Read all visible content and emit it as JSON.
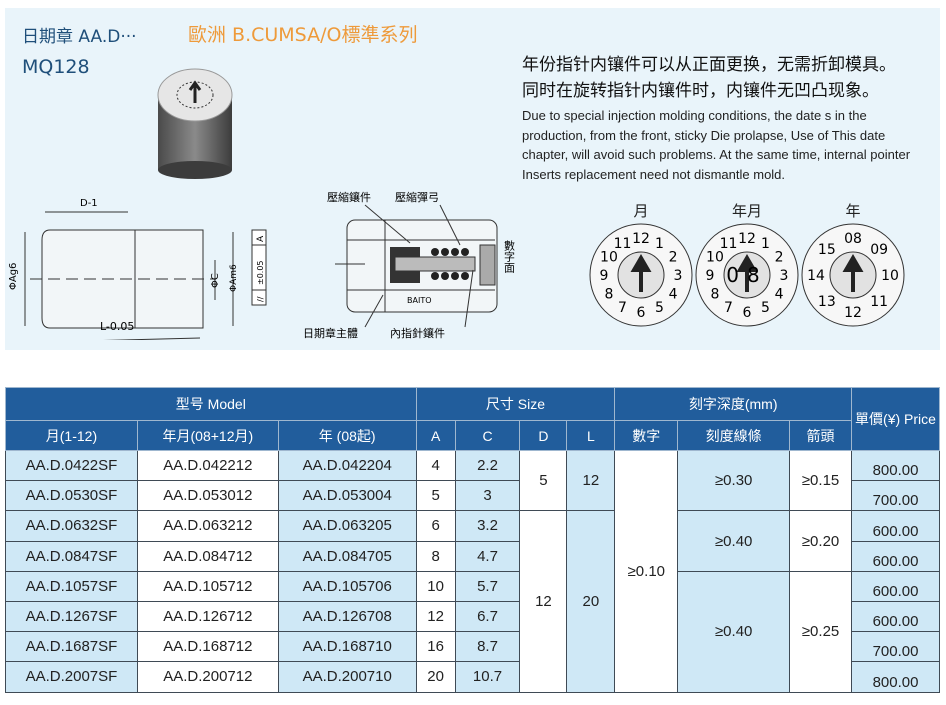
{
  "header": {
    "product": "日期章  AA.D···",
    "series": "歐洲 B.CUMSA/O標準系列",
    "code": "MQ128"
  },
  "description": {
    "cn": [
      "年份指针内镶件可以从正面更换，无需折卸模具。",
      "同时在旋转指针内镶件时，内镶件无凹凸现象。"
    ],
    "en": "Due to special injection molding conditions, the date s in the production, from the front, sticky Die prolapse, Use of This date chapter, will avoid such problems. At the same time, internal pointer Inserts replacement need not dismantle mold."
  },
  "drawing": {
    "d1": "D-1",
    "dg6": "ΦAg6",
    "l": "L-0.05",
    "c": "ΦC",
    "am6": "ΦAm6",
    "tol": "±0.05",
    "datum": "A",
    "par": "//"
  },
  "section": {
    "label1": "壓縮鑲件",
    "label2": "壓縮彈弓",
    "label3": "日期章主體",
    "label4": "內指針鑲件",
    "label5": "數字面",
    "brand": "BAITO"
  },
  "dials": [
    {
      "title": "月",
      "numbers": [
        "12",
        "1",
        "2",
        "3",
        "4",
        "5",
        "6",
        "7",
        "8",
        "9",
        "10",
        "11"
      ],
      "center": ""
    },
    {
      "title": "年月",
      "numbers": [
        "12",
        "1",
        "2",
        "3",
        "4",
        "5",
        "6",
        "7",
        "8",
        "9",
        "10",
        "11"
      ],
      "center": "08"
    },
    {
      "title": "年",
      "numbers": [
        "08",
        "09",
        "10",
        "11",
        "12",
        "13",
        "14",
        "15"
      ],
      "center": ""
    }
  ],
  "table": {
    "groups": {
      "model": "型号 Model",
      "size": "尺寸 Size",
      "depth": "刻字深度(mm)",
      "price": "單價(¥) Price"
    },
    "cols": [
      "月(1-12)",
      "年月(08+12月)",
      "年 (08起)",
      "A",
      "C",
      "D",
      "L",
      "數字",
      "刻度線條",
      "箭頭"
    ],
    "rows": [
      {
        "m": "AA.D.0422SF",
        "ym": "AA.D.042212",
        "y": "AA.D.042204",
        "a": "4",
        "c": "2.2",
        "price": "800.00"
      },
      {
        "m": "AA.D.0530SF",
        "ym": "AA.D.053012",
        "y": "AA.D.053004",
        "a": "5",
        "c": "3",
        "price": "700.00"
      },
      {
        "m": "AA.D.0632SF",
        "ym": "AA.D.063212",
        "y": "AA.D.063205",
        "a": "6",
        "c": "3.2",
        "price": "600.00"
      },
      {
        "m": "AA.D.0847SF",
        "ym": "AA.D.084712",
        "y": "AA.D.084705",
        "a": "8",
        "c": "4.7",
        "price": "600.00"
      },
      {
        "m": "AA.D.1057SF",
        "ym": "AA.D.105712",
        "y": "AA.D.105706",
        "a": "10",
        "c": "5.7",
        "price": "600.00"
      },
      {
        "m": "AA.D.1267SF",
        "ym": "AA.D.126712",
        "y": "AA.D.126708",
        "a": "12",
        "c": "6.7",
        "price": "600.00"
      },
      {
        "m": "AA.D.1687SF",
        "ym": "AA.D.168712",
        "y": "AA.D.168710",
        "a": "16",
        "c": "8.7",
        "price": "700.00"
      },
      {
        "m": "AA.D.2007SF",
        "ym": "AA.D.200712",
        "y": "AA.D.200710",
        "a": "20",
        "c": "10.7",
        "price": "800.00"
      }
    ],
    "merged": {
      "d1": "5",
      "l1": "12",
      "d2": "12",
      "l2": "20",
      "digit": "≥0.10",
      "scale1": "≥0.30",
      "scale2": "≥0.40",
      "scale3": "≥0.40",
      "arrow1": "≥0.15",
      "arrow2": "≥0.20",
      "arrow3": "≥0.25"
    }
  },
  "colors": {
    "header": "#215d9c",
    "cell_blue": "#cfe8f6",
    "panel": "#e9f4fa",
    "series": "#ee9a3a"
  }
}
